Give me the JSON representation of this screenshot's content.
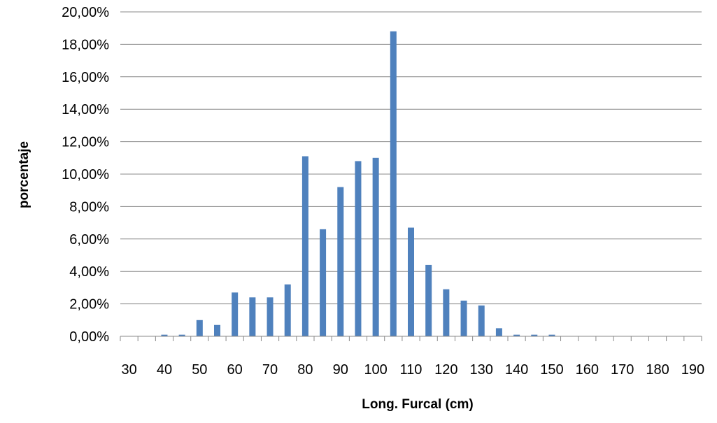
{
  "chart_data": {
    "type": "bar",
    "title": "",
    "xlabel": "Long. Furcal (cm)",
    "ylabel": "porcentaje",
    "categories": [
      "30",
      "35",
      "40",
      "45",
      "50",
      "55",
      "60",
      "65",
      "70",
      "75",
      "80",
      "85",
      "90",
      "95",
      "100",
      "105",
      "110",
      "115",
      "120",
      "125",
      "130",
      "135",
      "140",
      "145",
      "150",
      "155",
      "160",
      "165",
      "170",
      "175",
      "180",
      "185",
      "190"
    ],
    "x_tick_labels": [
      "30",
      "40",
      "50",
      "60",
      "70",
      "80",
      "90",
      "100",
      "110",
      "120",
      "130",
      "140",
      "150",
      "160",
      "170",
      "180",
      "190"
    ],
    "values": [
      0,
      0,
      0.1,
      0.1,
      1.0,
      0.7,
      2.7,
      2.4,
      2.4,
      3.2,
      11.1,
      6.6,
      9.2,
      10.8,
      11.0,
      18.8,
      6.7,
      4.4,
      2.9,
      2.2,
      1.9,
      0.5,
      0.1,
      0.1,
      0.1,
      0,
      0,
      0,
      0,
      0,
      0,
      0,
      0
    ],
    "y_unit": "percent",
    "ylim": [
      0,
      20
    ],
    "y_ticks": [
      "0,00%",
      "2,00%",
      "4,00%",
      "6,00%",
      "8,00%",
      "10,00%",
      "12,00%",
      "14,00%",
      "16,00%",
      "18,00%",
      "20,00%"
    ],
    "grid": true,
    "legend": "none",
    "bar_color": "#4f81bd",
    "grid_color": "#888888",
    "axis_color": "#888888"
  }
}
